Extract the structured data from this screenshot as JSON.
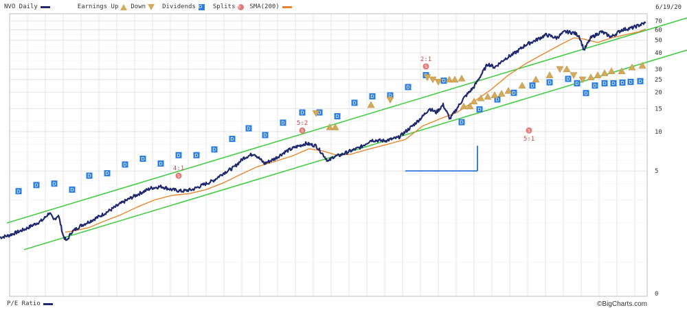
{
  "legend": {
    "ticker": "NVO Daily",
    "earnings": "Earnings Up",
    "down": "Down",
    "dividends": "Dividends",
    "splits": "Splits",
    "sma": "SMA(200)"
  },
  "date_label": "6/19/20",
  "footer": {
    "pe_label": "P/E Ratio",
    "credit": "©BigCharts.com"
  },
  "colors": {
    "price": "#1f2a6e",
    "sma": "#e8852c",
    "trend": "#44cc44",
    "annotation": "#2a6fd6",
    "dividend": "#2a7de1",
    "earnings": "#d4aa5a",
    "split": "#e07a7a",
    "grid": "#d6d6d6"
  },
  "chart_data": {
    "type": "line",
    "y_scale": "log",
    "y_ticks": [
      0,
      5,
      10,
      15,
      20,
      25,
      30,
      40,
      50,
      60,
      70
    ],
    "price_series": {
      "name": "NVO Daily",
      "x": [
        0,
        12,
        25,
        37,
        50,
        62,
        72,
        78,
        85,
        92,
        97,
        104,
        117,
        130,
        145,
        160,
        175,
        190,
        205,
        220,
        235,
        250,
        265,
        280,
        295,
        310,
        325,
        340,
        355,
        370,
        385,
        400,
        415,
        430,
        445,
        460,
        470,
        478,
        485,
        495,
        510,
        525,
        540,
        560,
        580,
        600,
        615,
        625,
        635,
        645,
        655,
        665,
        675,
        690,
        700,
        710,
        720,
        735,
        750,
        765,
        780,
        795,
        810,
        822,
        835,
        843,
        850,
        860,
        875,
        890,
        905,
        920,
        930,
        940
      ],
      "y": [
        1.55,
        1.6,
        1.7,
        1.8,
        1.95,
        2.1,
        2.4,
        2.1,
        2.3,
        1.6,
        1.45,
        1.7,
        1.9,
        2.05,
        2.25,
        2.5,
        2.8,
        3.1,
        3.4,
        3.7,
        3.8,
        3.6,
        3.5,
        3.6,
        3.9,
        4.2,
        4.8,
        5.3,
        6.3,
        6.8,
        5.7,
        6.2,
        7.0,
        7.6,
        8.1,
        7.8,
        6.7,
        5.9,
        6.4,
        6.6,
        7.1,
        7.6,
        8.6,
        8.5,
        9.0,
        11.0,
        13.0,
        15.0,
        14.0,
        16.0,
        12.5,
        15.0,
        18.0,
        22.0,
        27.0,
        33.0,
        31.0,
        36.0,
        40.0,
        46.0,
        50.0,
        55.0,
        52.0,
        58.0,
        57.0,
        54.0,
        42.0,
        52.0,
        58.0,
        53.0,
        60.0,
        62.0,
        65.0,
        68.0
      ]
    },
    "sma_series": {
      "name": "SMA(200)",
      "x": [
        95,
        110,
        130,
        150,
        175,
        200,
        225,
        250,
        275,
        300,
        325,
        350,
        375,
        400,
        425,
        450,
        470,
        490,
        510,
        535,
        560,
        590,
        615,
        640,
        665,
        690,
        715,
        740,
        765,
        790,
        815,
        835,
        850,
        870,
        890,
        910,
        930,
        940
      ],
      "y": [
        1.7,
        1.75,
        1.85,
        2.05,
        2.3,
        2.65,
        3.0,
        3.25,
        3.35,
        3.6,
        4.05,
        4.7,
        5.4,
        5.9,
        6.5,
        7.4,
        7.1,
        6.6,
        6.7,
        7.3,
        7.9,
        8.7,
        11.0,
        12.5,
        14.0,
        17.0,
        21.0,
        27.0,
        33.0,
        39.0,
        46.0,
        52.0,
        51.0,
        48.0,
        52.0,
        55.0,
        58.0,
        61.0
      ]
    },
    "dividends": [
      {
        "x": 27,
        "y": 3.5
      },
      {
        "x": 53,
        "y": 3.9
      },
      {
        "x": 79,
        "y": 4.0
      },
      {
        "x": 105,
        "y": 3.6
      },
      {
        "x": 130,
        "y": 4.6
      },
      {
        "x": 156,
        "y": 4.8
      },
      {
        "x": 182,
        "y": 5.6
      },
      {
        "x": 208,
        "y": 6.2
      },
      {
        "x": 234,
        "y": 5.7
      },
      {
        "x": 260,
        "y": 6.6
      },
      {
        "x": 286,
        "y": 6.6
      },
      {
        "x": 312,
        "y": 7.3
      },
      {
        "x": 338,
        "y": 8.8
      },
      {
        "x": 362,
        "y": 10.6
      },
      {
        "x": 386,
        "y": 9.4
      },
      {
        "x": 412,
        "y": 11.7
      },
      {
        "x": 440,
        "y": 14.0
      },
      {
        "x": 465,
        "y": 14.0
      },
      {
        "x": 491,
        "y": 13.1
      },
      {
        "x": 516,
        "y": 16.6
      },
      {
        "x": 542,
        "y": 18.6
      },
      {
        "x": 568,
        "y": 18.9
      },
      {
        "x": 594,
        "y": 21.9
      },
      {
        "x": 620,
        "y": 27.0
      },
      {
        "x": 646,
        "y": 24.5
      },
      {
        "x": 672,
        "y": 11.8
      },
      {
        "x": 698,
        "y": 14.8
      },
      {
        "x": 724,
        "y": 17.6
      },
      {
        "x": 748,
        "y": 19.8
      },
      {
        "x": 775,
        "y": 22.5
      },
      {
        "x": 800,
        "y": 23.8
      },
      {
        "x": 827,
        "y": 25.3
      },
      {
        "x": 840,
        "y": 23.4
      },
      {
        "x": 853,
        "y": 19.7
      },
      {
        "x": 866,
        "y": 22.5
      },
      {
        "x": 880,
        "y": 23.4
      },
      {
        "x": 893,
        "y": 23.4
      },
      {
        "x": 906,
        "y": 23.7
      },
      {
        "x": 918,
        "y": 24.0
      },
      {
        "x": 932,
        "y": 24.3
      }
    ],
    "earnings": [
      {
        "x": 460,
        "y": 13.8,
        "dir": "down"
      },
      {
        "x": 480,
        "y": 10.8,
        "dir": "up"
      },
      {
        "x": 488,
        "y": 10.8,
        "dir": "up"
      },
      {
        "x": 540,
        "y": 16.0,
        "dir": "up"
      },
      {
        "x": 568,
        "y": 17.5,
        "dir": "down"
      },
      {
        "x": 622,
        "y": 26.0,
        "dir": "down"
      },
      {
        "x": 630,
        "y": 25.0,
        "dir": "down"
      },
      {
        "x": 638,
        "y": 24.0,
        "dir": "down"
      },
      {
        "x": 654,
        "y": 25.0,
        "dir": "up"
      },
      {
        "x": 662,
        "y": 25.0,
        "dir": "up"
      },
      {
        "x": 672,
        "y": 25.5,
        "dir": "up"
      },
      {
        "x": 675,
        "y": 15.6,
        "dir": "up"
      },
      {
        "x": 684,
        "y": 15.6,
        "dir": "up"
      },
      {
        "x": 690,
        "y": 17.0,
        "dir": "up"
      },
      {
        "x": 700,
        "y": 18.0,
        "dir": "up"
      },
      {
        "x": 710,
        "y": 18.5,
        "dir": "up"
      },
      {
        "x": 720,
        "y": 19.0,
        "dir": "up"
      },
      {
        "x": 730,
        "y": 19.5,
        "dir": "up"
      },
      {
        "x": 740,
        "y": 20.5,
        "dir": "up"
      },
      {
        "x": 760,
        "y": 22.5,
        "dir": "up"
      },
      {
        "x": 780,
        "y": 25.0,
        "dir": "up"
      },
      {
        "x": 800,
        "y": 27.0,
        "dir": "up"
      },
      {
        "x": 815,
        "y": 30.0,
        "dir": "down"
      },
      {
        "x": 825,
        "y": 30.0,
        "dir": "up"
      },
      {
        "x": 835,
        "y": 27.0,
        "dir": "down"
      },
      {
        "x": 848,
        "y": 25.0,
        "dir": "down"
      },
      {
        "x": 860,
        "y": 26.0,
        "dir": "up"
      },
      {
        "x": 870,
        "y": 27.0,
        "dir": "up"
      },
      {
        "x": 880,
        "y": 28.0,
        "dir": "up"
      },
      {
        "x": 890,
        "y": 29.0,
        "dir": "up"
      },
      {
        "x": 905,
        "y": 29.0,
        "dir": "up"
      },
      {
        "x": 920,
        "y": 31.0,
        "dir": "up"
      },
      {
        "x": 935,
        "y": 32.0,
        "dir": "up"
      }
    ],
    "splits": [
      {
        "x": 260,
        "y": 4.6,
        "label": "4:1"
      },
      {
        "x": 440,
        "y": 10.2,
        "label": "5:2"
      },
      {
        "x": 620,
        "y": 31.5,
        "label": "2:1"
      },
      {
        "x": 770,
        "y": 10.2,
        "label": "5:1"
      }
    ],
    "trend_lines": [
      {
        "x1": 10,
        "y1": 2.0,
        "x2": 1000,
        "y2": 74.0
      },
      {
        "x1": 35,
        "y1": 1.25,
        "x2": 1000,
        "y2": 42.0
      }
    ],
    "annotation_lines": [
      {
        "x1": 590,
        "y1": 5.0,
        "x2": 695,
        "y2": 5.0
      },
      {
        "x1": 695,
        "y1": 5.0,
        "x2": 695,
        "y2": 7.8
      }
    ]
  }
}
